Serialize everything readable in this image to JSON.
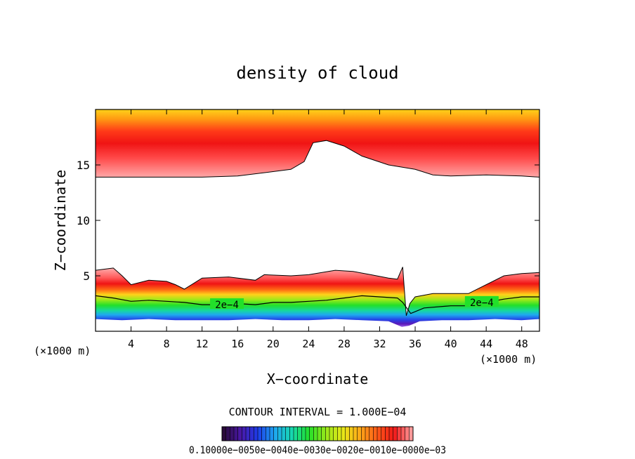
{
  "chart_data": {
    "type": "heatmap",
    "title": "density of cloud",
    "xlabel": "X−coordinate",
    "ylabel": "Z−coordinate",
    "x_unit_left": "(×1000 m)",
    "x_unit_right": "(×1000 m)",
    "xlim": [
      0,
      50
    ],
    "ylim": [
      0,
      20
    ],
    "x_ticks": [
      4,
      8,
      12,
      16,
      20,
      24,
      28,
      32,
      36,
      40,
      44,
      48
    ],
    "y_ticks": [
      5,
      10,
      15
    ],
    "contour_interval_text": "CONTOUR INTERVAL = 1.000E−04",
    "colorbar_label_text": "0.10000e−0050e−0040e−0030e−0020e−0010e−0000e−03",
    "contour_labels": [
      "2e−4",
      "2e−4"
    ],
    "upper_cloud_base": {
      "x": [
        0,
        4,
        8,
        12,
        16,
        20,
        22,
        23.5,
        24.5,
        26,
        28,
        30,
        33,
        36,
        38,
        40,
        44,
        48,
        50
      ],
      "z": [
        13.9,
        13.9,
        13.9,
        13.9,
        14.0,
        14.4,
        14.6,
        15.3,
        17.0,
        17.2,
        16.7,
        15.8,
        15.0,
        14.6,
        14.1,
        14.0,
        14.1,
        14.0,
        13.9
      ]
    },
    "lower_cloud_top": {
      "x": [
        0,
        2,
        3,
        4,
        6,
        8,
        9,
        10,
        12,
        15,
        18,
        19,
        22,
        24,
        27,
        29,
        31,
        33,
        34,
        34.6,
        35,
        35.4,
        36,
        38,
        40,
        42,
        44,
        46,
        48,
        50
      ],
      "z": [
        5.5,
        5.7,
        5.0,
        4.2,
        4.6,
        4.5,
        4.2,
        3.8,
        4.8,
        4.9,
        4.6,
        5.1,
        5.0,
        5.1,
        5.5,
        5.4,
        5.1,
        4.8,
        4.7,
        5.8,
        1.4,
        2.5,
        3.1,
        3.4,
        3.4,
        3.4,
        4.2,
        5.0,
        5.2,
        5.3
      ]
    },
    "contour_2e-4": {
      "x": [
        0,
        2,
        4,
        6,
        8,
        10,
        12,
        14,
        16,
        18,
        20,
        22,
        24,
        26,
        28,
        30,
        32,
        34,
        34.6,
        35.5,
        37,
        40,
        42,
        44,
        46,
        48,
        50
      ],
      "z": [
        3.2,
        3.0,
        2.7,
        2.8,
        2.7,
        2.6,
        2.4,
        2.4,
        2.5,
        2.4,
        2.6,
        2.6,
        2.7,
        2.8,
        3.0,
        3.2,
        3.1,
        3.0,
        2.6,
        1.6,
        2.1,
        2.3,
        2.3,
        2.6,
        2.9,
        3.1,
        3.1
      ]
    },
    "cloud_base": {
      "x": [
        0,
        3,
        6,
        9,
        12,
        15,
        18,
        21,
        24,
        27,
        30,
        33,
        34.5,
        35.3,
        36.5,
        39,
        42,
        45,
        48,
        50
      ],
      "z": [
        1.1,
        1.0,
        1.1,
        1.0,
        1.0,
        1.0,
        1.1,
        1.0,
        1.0,
        1.1,
        1.0,
        0.9,
        0.4,
        0.5,
        0.9,
        1.0,
        1.0,
        1.1,
        1.0,
        1.1
      ]
    },
    "colorbar": {
      "min": 0.0001,
      "max": 0.0025,
      "colors": [
        "#2a0a3a",
        "#4a18a8",
        "#1c3ce8",
        "#1ea8f0",
        "#17d8b0",
        "#22e02a",
        "#9ae81a",
        "#e8e818",
        "#ffa818",
        "#ff5a18",
        "#f01818",
        "#ff9a9a"
      ]
    }
  }
}
